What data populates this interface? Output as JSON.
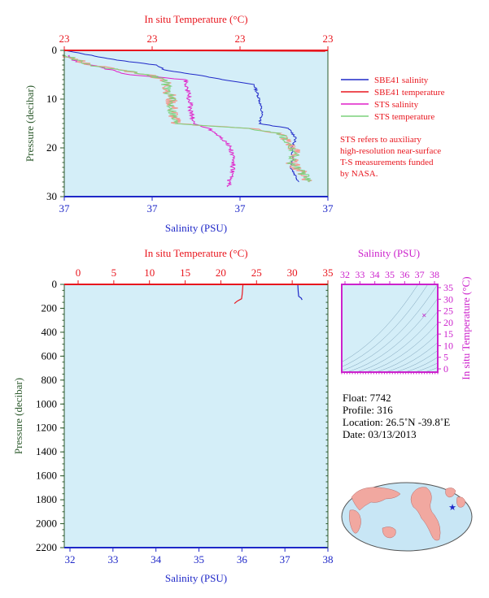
{
  "colors": {
    "plot_bg": "#d4eef8",
    "salinity_blue": "#1f28c8",
    "temperature_red": "#e8161e",
    "sts_salinity": "#e01ec8",
    "sts_temperature": "#7cd27c",
    "sts_temperature_pink": "#f29a90",
    "axis_green": "#2d5a2d",
    "ts_magenta": "#cc22cc",
    "map_land": "#f1a8a0",
    "map_ocean": "#c8e6f5"
  },
  "top_chart": {
    "top_axis_title": "In situ Temperature (°C)",
    "top_ticks": [
      "23",
      "23",
      "23",
      "23"
    ],
    "bottom_axis_title": "Salinity (PSU)",
    "bottom_ticks": [
      "37",
      "37",
      "37",
      "37"
    ],
    "y_axis_title": "Pressure (decibar)",
    "y_ticks": [
      "0",
      "10",
      "20",
      "30"
    ]
  },
  "legend": {
    "items": [
      {
        "label": "SBE41 salinity",
        "color": "#1f28c8"
      },
      {
        "label": "SBE41 temperature",
        "color": "#e8161e"
      },
      {
        "label": "STS salinity",
        "color": "#e01ec8"
      },
      {
        "label": "STS temperature",
        "color": "#7cd27c"
      }
    ],
    "note_lines": [
      "STS refers to auxiliary",
      "high-resolution near-surface",
      "T-S measurements funded",
      "by NASA."
    ]
  },
  "bottom_chart": {
    "top_axis_title": "In situ Temperature (°C)",
    "top_ticks": [
      "0",
      "5",
      "10",
      "15",
      "20",
      "25",
      "30",
      "35"
    ],
    "bottom_axis_title": "Salinity (PSU)",
    "bottom_ticks": [
      "32",
      "33",
      "34",
      "35",
      "36",
      "37",
      "38"
    ],
    "y_axis_title": "Pressure (decibar)",
    "y_ticks": [
      "0",
      "200",
      "400",
      "600",
      "800",
      "1000",
      "1200",
      "1400",
      "1600",
      "1800",
      "2000",
      "2200"
    ]
  },
  "ts_diagram": {
    "top_axis_title": "Salinity (PSU)",
    "top_ticks": [
      "32",
      "33",
      "34",
      "35",
      "36",
      "37",
      "38"
    ],
    "right_axis_title": "In situ Temperature (°C)",
    "right_ticks": [
      "0",
      "5",
      "10",
      "15",
      "20",
      "25",
      "30",
      "35"
    ]
  },
  "info": {
    "float_line": "Float:  7742",
    "profile_line": "Profile:  316",
    "location_line": "Location:  26.5˚N  -39.8˚E",
    "date_line": "Date:  03/13/2013"
  },
  "chart_data": [
    {
      "type": "line",
      "title": "",
      "xlabel": "Salinity (PSU)",
      "x2label": "In situ Temperature (°C)",
      "ylabel": "Pressure (decibar)",
      "ylim": [
        30,
        0
      ],
      "series": [
        {
          "name": "SBE41 salinity",
          "color": "#1f28c8",
          "points": [
            [
              0.0,
              0
            ],
            [
              0.2,
              2
            ],
            [
              0.35,
              3
            ],
            [
              0.38,
              4
            ],
            [
              0.5,
              5
            ],
            [
              0.6,
              6
            ],
            [
              0.72,
              7
            ],
            [
              0.74,
              10
            ],
            [
              0.75,
              13
            ],
            [
              0.74,
              15
            ],
            [
              0.85,
              16
            ],
            [
              0.88,
              18
            ],
            [
              0.86,
              20
            ],
            [
              0.87,
              22
            ],
            [
              0.86,
              24
            ],
            [
              0.88,
              26
            ],
            [
              0.89,
              27
            ]
          ]
        },
        {
          "name": "SBE41 temperature",
          "color": "#e8161e",
          "points": [
            [
              0.0,
              0
            ],
            [
              0.99,
              0.2
            ]
          ]
        },
        {
          "name": "STS salinity",
          "color": "#e01ec8",
          "points": [
            [
              0.02,
              1
            ],
            [
              0.03,
              2
            ],
            [
              0.1,
              3
            ],
            [
              0.25,
              5
            ],
            [
              0.46,
              6
            ],
            [
              0.47,
              9
            ],
            [
              0.48,
              12
            ],
            [
              0.49,
              15
            ],
            [
              0.55,
              16
            ],
            [
              0.6,
              18
            ],
            [
              0.63,
              20
            ],
            [
              0.64,
              22
            ],
            [
              0.64,
              24
            ],
            [
              0.63,
              26
            ],
            [
              0.62,
              28
            ]
          ]
        },
        {
          "name": "STS temperature",
          "color": "#7cd27c",
          "points": [
            [
              0.0,
              1
            ],
            [
              0.05,
              2
            ],
            [
              0.1,
              3
            ],
            [
              0.32,
              5
            ],
            [
              0.38,
              6
            ],
            [
              0.4,
              9
            ],
            [
              0.41,
              12
            ],
            [
              0.42,
              15
            ],
            [
              0.7,
              16
            ],
            [
              0.82,
              17
            ],
            [
              0.85,
              19
            ],
            [
              0.88,
              21
            ],
            [
              0.86,
              23
            ],
            [
              0.9,
              25
            ],
            [
              0.93,
              27
            ]
          ]
        }
      ]
    },
    {
      "type": "line",
      "title": "",
      "xlabel": "Salinity (PSU)",
      "x2label": "In situ Temperature (°C)",
      "ylabel": "Pressure (decibar)",
      "xlim": [
        32,
        38
      ],
      "x2lim": [
        0,
        35
      ],
      "ylim": [
        2200,
        0
      ],
      "series": [
        {
          "name": "SBE41 salinity",
          "color": "#1f28c8",
          "axis": "salinity",
          "points": [
            [
              37.3,
              0
            ],
            [
              37.31,
              60
            ],
            [
              37.32,
              100
            ],
            [
              37.38,
              115
            ],
            [
              37.4,
              130
            ]
          ]
        },
        {
          "name": "SBE41 temperature",
          "color": "#e8161e",
          "axis": "temperature",
          "points": [
            [
              23.1,
              0
            ],
            [
              23.0,
              80
            ],
            [
              22.9,
              120
            ],
            [
              22.3,
              140
            ],
            [
              21.9,
              160
            ]
          ]
        }
      ]
    },
    {
      "type": "scatter",
      "title": "",
      "xlabel": "Salinity (PSU)",
      "ylabel": "In situ Temperature (°C)",
      "xlim": [
        32,
        38
      ],
      "ylim": [
        0,
        35
      ],
      "points": [
        [
          37.3,
          23.2
        ]
      ]
    }
  ]
}
